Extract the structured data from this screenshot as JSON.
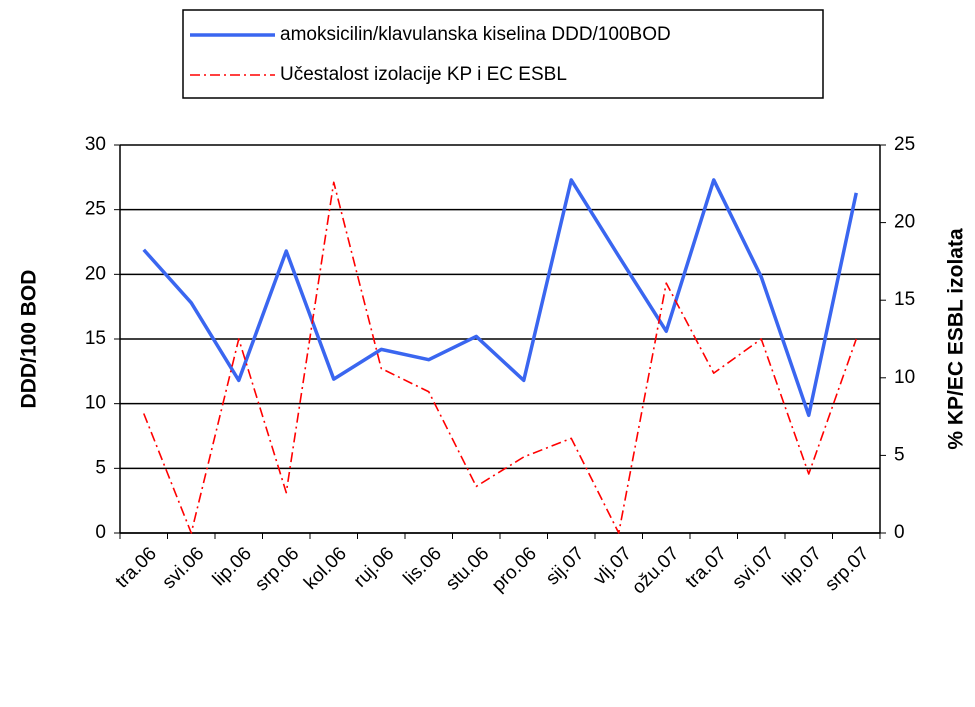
{
  "chart_data": {
    "type": "line",
    "categories": [
      "tra.06",
      "svi.06",
      "lip.06",
      "srp.06",
      "kol.06",
      "ruj.06",
      "lis.06",
      "stu.06",
      "pro.06",
      "sij.07",
      "vlj.07",
      "ožu.07",
      "tra.07",
      "svi.07",
      "lip.07",
      "srp.07"
    ],
    "series": [
      {
        "name": "amoksicilin/klavulanska kiselina DDD/100BOD",
        "color": "#3a66f0",
        "dash": "solid",
        "values": [
          21.9,
          17.8,
          11.8,
          21.8,
          11.9,
          14.2,
          13.4,
          15.2,
          11.8,
          27.3,
          21.4,
          15.6,
          27.3,
          19.8,
          9.1,
          26.3
        ]
      },
      {
        "name": "Učestalost izolacije KP i EC ESBL",
        "color": "#ff0000",
        "dash": "dashdot",
        "axis": "y2",
        "values": [
          7.7,
          0,
          12.5,
          2.6,
          22.6,
          10.6,
          9.1,
          3.0,
          4.9,
          6.1,
          0,
          16.1,
          10.3,
          12.5,
          3.8,
          12.5
        ]
      }
    ],
    "ylabel": "DDD/100 BOD",
    "y2label": "% KP/EC ESBL izolata",
    "ylim": [
      0,
      30
    ],
    "yticks": [
      0,
      5,
      10,
      15,
      20,
      25,
      30
    ],
    "y2lim": [
      0,
      25
    ],
    "y2ticks": [
      0,
      5,
      10,
      15,
      20,
      25
    ],
    "grid": true,
    "legend": "top"
  }
}
